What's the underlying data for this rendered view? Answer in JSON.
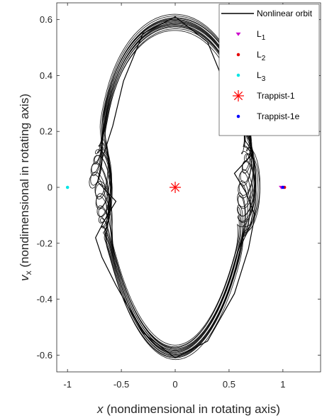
{
  "chart_data": {
    "type": "line",
    "title": "",
    "xlabel_var": "x",
    "xlabel_rest": " (nondimensional in rotating axis)",
    "ylabel_var": "v",
    "ylabel_sub": "x",
    "ylabel_rest": " (nondimensional in rotating axis)",
    "xlim": [
      -1.1,
      1.35
    ],
    "ylim": [
      -0.66,
      0.66
    ],
    "xticks": [
      -1,
      -0.5,
      0,
      0.5,
      1
    ],
    "xtick_labels": [
      "-1",
      "-0.5",
      "0",
      "0.5",
      "1"
    ],
    "yticks": [
      -0.6,
      -0.4,
      -0.2,
      0,
      0.2,
      0.4,
      0.6
    ],
    "ytick_labels": [
      "-0.6",
      "-0.4",
      "-0.2",
      "0",
      "0.2",
      "0.4",
      "0.6"
    ],
    "grid": false,
    "legend_position": "top-right",
    "series": [
      {
        "name": "Nonlinear orbit",
        "color": "#000000",
        "style": "line",
        "x": [
          0.0,
          0.3,
          0.55,
          0.68,
          0.74,
          0.66,
          0.55,
          0.72,
          0.68,
          0.58,
          0.48,
          0.3,
          0.0,
          -0.3,
          -0.48,
          -0.58,
          -0.68,
          -0.72,
          -0.55,
          -0.66,
          -0.74,
          -0.68,
          -0.55,
          -0.3,
          0.0
        ],
        "y": [
          -0.61,
          -0.55,
          -0.38,
          -0.22,
          -0.1,
          -0.02,
          0.05,
          0.12,
          0.18,
          0.25,
          0.35,
          0.52,
          0.61,
          0.55,
          0.38,
          0.22,
          0.1,
          0.02,
          -0.05,
          -0.12,
          -0.18,
          -0.25,
          -0.35,
          -0.52,
          -0.61
        ]
      },
      {
        "name": "L",
        "name_sub": "1",
        "color": "#cc00cc",
        "marker": "triangle-down",
        "x": [
          0.985
        ],
        "y": [
          0
        ]
      },
      {
        "name": "L",
        "name_sub": "2",
        "color": "#e60000",
        "marker": "dot",
        "x": [
          1.015
        ],
        "y": [
          0
        ]
      },
      {
        "name": "L",
        "name_sub": "3",
        "color": "#00e6e6",
        "marker": "dot",
        "x": [
          -1.0
        ],
        "y": [
          0
        ]
      },
      {
        "name": "Trappist-1",
        "color": "#ff0000",
        "marker": "asterisk",
        "x": [
          0
        ],
        "y": [
          0
        ]
      },
      {
        "name": "Trappist-1e",
        "color": "#0000ff",
        "marker": "dot",
        "x": [
          1.0
        ],
        "y": [
          0
        ]
      }
    ]
  }
}
